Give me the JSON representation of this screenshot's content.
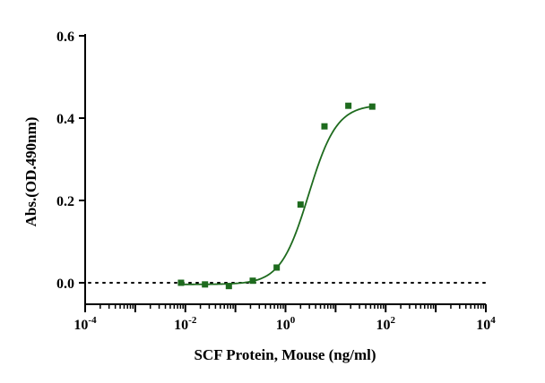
{
  "chart_data": {
    "type": "scatter",
    "xlabel": "SCF Protein, Mouse (ng/ml)",
    "ylabel": "Abs.(OD.490nm)",
    "x_scale": "log",
    "xlim": [
      0.0001,
      10000
    ],
    "ylim": [
      0,
      0.6
    ],
    "x_ticks": [
      {
        "value": 0.0001,
        "base": "10",
        "exp": "-4"
      },
      {
        "value": 0.01,
        "base": "10",
        "exp": "-2"
      },
      {
        "value": 1,
        "base": "10",
        "exp": "0"
      },
      {
        "value": 100,
        "base": "10",
        "exp": "2"
      },
      {
        "value": 10000,
        "base": "10",
        "exp": "4"
      }
    ],
    "y_ticks": [
      "0.0",
      "0.2",
      "0.4",
      "0.6"
    ],
    "baseline": {
      "y": 0,
      "style": "dotted"
    },
    "series": [
      {
        "points": [
          {
            "x": 0.0082,
            "y": 0.0
          },
          {
            "x": 0.0247,
            "y": -0.004
          },
          {
            "x": 0.074,
            "y": -0.008
          },
          {
            "x": 0.222,
            "y": 0.005
          },
          {
            "x": 0.667,
            "y": 0.037
          },
          {
            "x": 2.0,
            "y": 0.19
          },
          {
            "x": 6.0,
            "y": 0.38
          },
          {
            "x": 18.0,
            "y": 0.43
          },
          {
            "x": 54.0,
            "y": 0.428
          }
        ],
        "fit": {
          "model": "4PL",
          "bottom": -0.004,
          "top": 0.433,
          "ec50": 2.9,
          "hill": 1.55
        }
      }
    ],
    "colors": {
      "series": "#1e6b1e",
      "axis": "#000000",
      "baseline": "#000000"
    },
    "grid": false,
    "legend": "none"
  }
}
